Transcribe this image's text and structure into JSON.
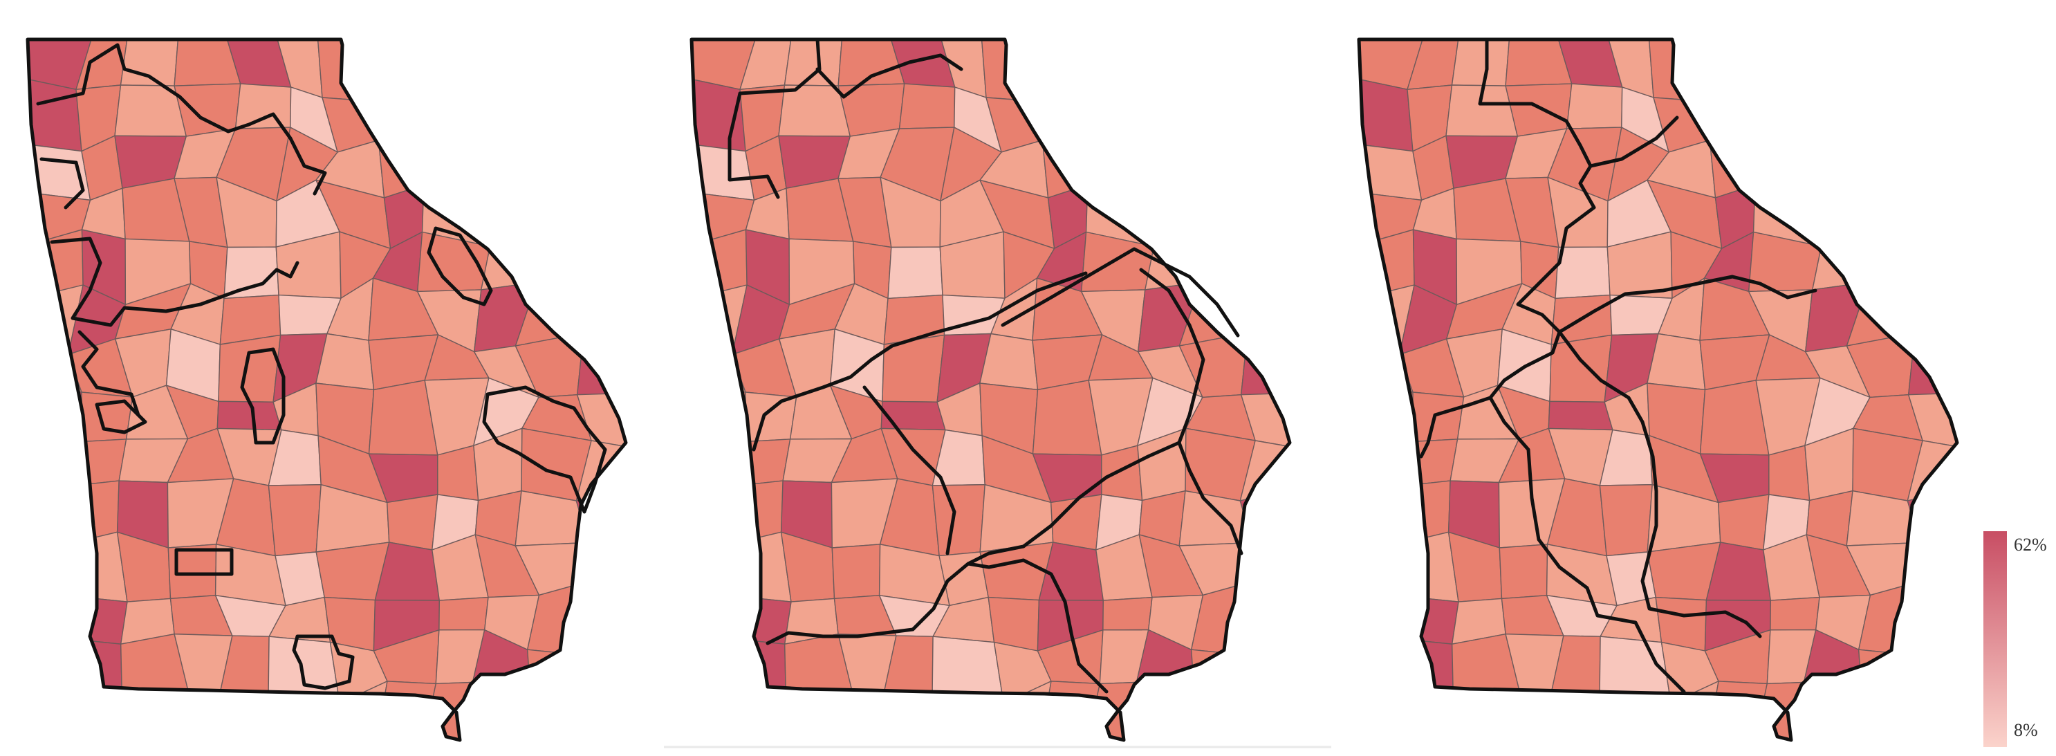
{
  "maps": [
    {
      "id": "map-1",
      "county_shades": [
        3,
        2,
        1,
        2,
        3,
        1,
        2,
        2,
        1,
        0,
        2,
        1,
        3,
        2,
        1,
        2,
        1,
        0,
        2,
        3,
        2,
        1,
        2,
        1,
        0,
        2,
        3,
        1,
        2,
        2,
        1,
        2,
        0,
        2,
        1,
        3,
        2,
        1,
        2,
        2,
        1,
        0,
        2,
        3,
        1,
        2,
        1,
        2,
        2,
        3,
        1,
        2,
        0,
        1,
        2,
        3,
        2,
        1,
        2,
        2,
        1,
        3,
        2,
        1,
        2,
        0,
        1,
        2,
        1,
        3,
        2,
        2,
        1,
        2,
        1,
        0,
        2,
        3,
        1,
        2,
        2,
        1,
        2,
        3
      ]
    },
    {
      "id": "map-2",
      "county_shades": [
        2,
        1,
        1,
        2,
        3,
        1,
        2,
        2,
        1,
        0,
        2,
        1,
        3,
        2,
        1,
        2,
        2,
        0,
        2,
        3,
        2,
        1,
        2,
        1,
        0,
        2,
        3,
        1,
        2,
        2,
        1,
        2,
        0,
        2,
        1,
        3,
        2,
        1,
        2,
        2,
        1,
        1,
        2,
        3,
        1,
        2,
        1,
        2,
        2,
        3,
        1,
        2,
        0,
        1,
        2,
        3,
        2,
        1,
        2,
        2,
        1,
        3,
        2,
        1,
        2,
        0,
        1,
        2,
        1,
        3,
        2,
        2,
        1,
        2,
        1,
        0,
        2,
        3,
        1,
        2,
        2,
        1,
        2,
        3
      ]
    },
    {
      "id": "map-3",
      "county_shades": [
        2,
        2,
        1,
        2,
        3,
        1,
        2,
        2,
        1,
        0,
        2,
        1,
        3,
        2,
        1,
        2,
        1,
        0,
        2,
        3,
        2,
        1,
        2,
        1,
        1,
        2,
        3,
        1,
        2,
        2,
        1,
        2,
        0,
        2,
        1,
        3,
        2,
        1,
        2,
        2,
        1,
        0,
        2,
        3,
        1,
        2,
        1,
        2,
        2,
        3,
        1,
        2,
        0,
        1,
        2,
        3,
        2,
        1,
        2,
        2,
        1,
        3,
        2,
        1,
        2,
        0,
        1,
        2,
        1,
        3,
        2,
        2,
        1,
        2,
        1,
        0,
        2,
        3,
        1,
        2,
        2,
        1,
        2,
        3
      ]
    }
  ],
  "colors": {
    "shades": [
      "#f8c6bc",
      "#f2a48f",
      "#e8806f",
      "#c84e64"
    ],
    "legend_high": "#c84e64",
    "legend_low": "#fbd3cb"
  },
  "legend": {
    "max_label": "62%",
    "min_label": "8%"
  }
}
